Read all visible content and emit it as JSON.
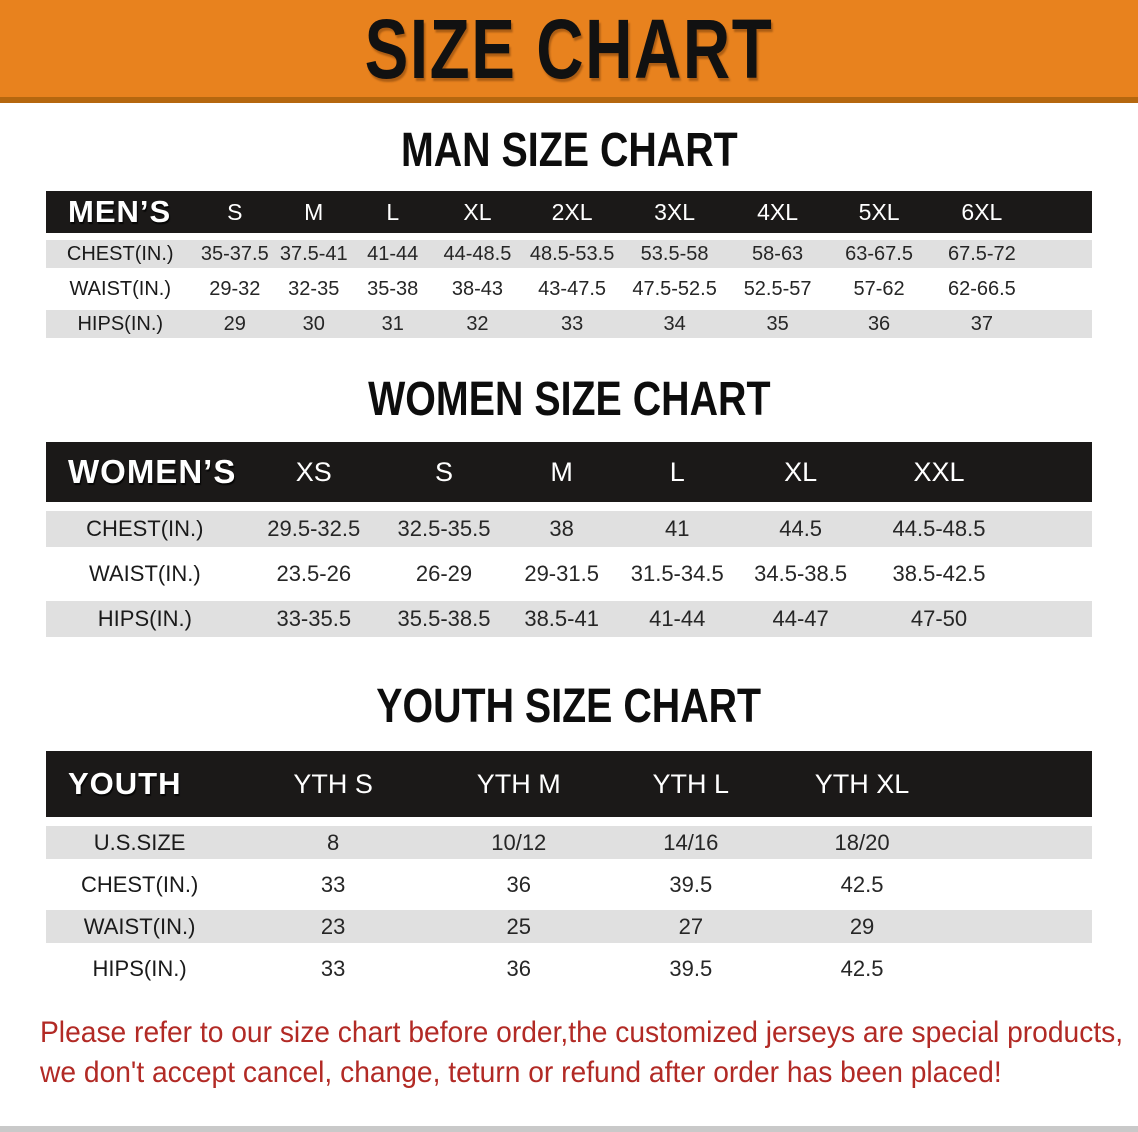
{
  "banner": {
    "title": "SIZE CHART",
    "bg_color": "#E8821E",
    "strip_color": "#B5670F"
  },
  "sections": [
    {
      "heading": "MAN SIZE CHART",
      "table": {
        "label": "MEN’S",
        "columns": [
          "S",
          "M",
          "L",
          "XL",
          "2XL",
          "3XL",
          "4XL",
          "5XL",
          "6XL"
        ],
        "rows": [
          {
            "label": "CHEST(IN.)",
            "values": [
              "35-37.5",
              "37.5-41",
              "41-44",
              "44-48.5",
              "48.5-53.5",
              "53.5-58",
              "58-63",
              "63-67.5",
              "67.5-72"
            ]
          },
          {
            "label": "WAIST(IN.)",
            "values": [
              "29-32",
              "32-35",
              "35-38",
              "38-43",
              "43-47.5",
              "47.5-52.5",
              "52.5-57",
              "57-62",
              "62-66.5"
            ]
          },
          {
            "label": "HIPS(IN.)",
            "values": [
              "29",
              "30",
              "31",
              "32",
              "33",
              "34",
              "35",
              "36",
              "37"
            ]
          }
        ]
      }
    },
    {
      "heading": "WOMEN SIZE CHART",
      "table": {
        "label": "WOMEN’S",
        "columns": [
          "XS",
          "S",
          "M",
          "L",
          "XL",
          "XXL"
        ],
        "rows": [
          {
            "label": "CHEST(IN.)",
            "values": [
              "29.5-32.5",
              "32.5-35.5",
              "38",
              "41",
              "44.5",
              "44.5-48.5"
            ]
          },
          {
            "label": "WAIST(IN.)",
            "values": [
              "23.5-26",
              "26-29",
              "29-31.5",
              "31.5-34.5",
              "34.5-38.5",
              "38.5-42.5"
            ]
          },
          {
            "label": "HIPS(IN.)",
            "values": [
              "33-35.5",
              "35.5-38.5",
              "38.5-41",
              "41-44",
              "44-47",
              "47-50"
            ]
          }
        ]
      }
    },
    {
      "heading": "YOUTH SIZE CHART",
      "table": {
        "label": "YOUTH",
        "columns": [
          "YTH S",
          "YTH M",
          "YTH L",
          "YTH XL"
        ],
        "rows": [
          {
            "label": "U.S.SIZE",
            "values": [
              "8",
              "10/12",
              "14/16",
              "18/20"
            ]
          },
          {
            "label": "CHEST(IN.)",
            "values": [
              "33",
              "36",
              "39.5",
              "42.5"
            ]
          },
          {
            "label": "WAIST(IN.)",
            "values": [
              "23",
              "25",
              "27",
              "29"
            ]
          },
          {
            "label": "HIPS(IN.)",
            "values": [
              "33",
              "36",
              "39.5",
              "42.5"
            ]
          }
        ]
      }
    }
  ],
  "footer": {
    "color": "#B22A25",
    "lines": [
      "Please refer to our size chart before order,the customized jerseys are special products,",
      "we don't accept cancel, change, teturn or refund after order has been placed!"
    ]
  }
}
